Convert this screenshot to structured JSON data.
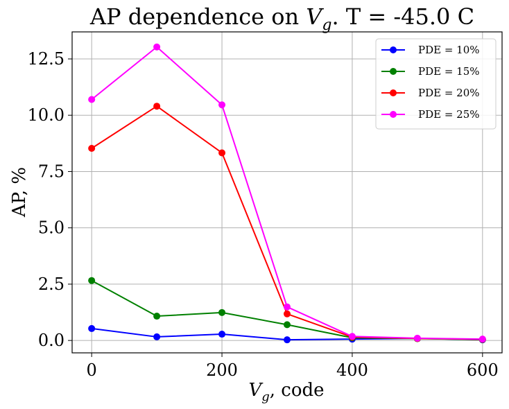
{
  "chart_data": {
    "type": "line",
    "title": "AP dependence on V_g. T = -45.0 C",
    "title_parts": {
      "prefix": "AP dependence on ",
      "var": "V",
      "sub": "g",
      "suffix": ". T = -45.0 C"
    },
    "xlabel": "V_g, code",
    "xlabel_parts": {
      "var": "V",
      "sub": "g",
      "suffix": ", code"
    },
    "ylabel": "AP, %",
    "x": [
      0,
      100,
      200,
      300,
      400,
      500,
      600
    ],
    "xlim": [
      -30,
      630
    ],
    "ylim": [
      -0.55,
      13.7
    ],
    "xticks": [
      0,
      200,
      400,
      600
    ],
    "xtick_labels": [
      "0",
      "200",
      "400",
      "600"
    ],
    "yticks": [
      0.0,
      2.5,
      5.0,
      7.5,
      10.0,
      12.5
    ],
    "ytick_labels": [
      "0.0",
      "2.5",
      "5.0",
      "7.5",
      "10.0",
      "12.5"
    ],
    "grid": true,
    "legend_position": "top-right",
    "series": [
      {
        "name": "PDE = 10%",
        "color": "#0000ff",
        "values": [
          0.53,
          0.16,
          0.28,
          0.03,
          0.06,
          0.09,
          0.03
        ]
      },
      {
        "name": "PDE = 15%",
        "color": "#008000",
        "values": [
          2.66,
          1.08,
          1.24,
          0.7,
          0.12,
          0.08,
          0.04
        ]
      },
      {
        "name": "PDE = 20%",
        "color": "#ff0000",
        "values": [
          8.53,
          10.4,
          8.33,
          1.18,
          0.15,
          0.09,
          0.05
        ]
      },
      {
        "name": "PDE = 25%",
        "color": "#ff00ff",
        "values": [
          10.7,
          13.03,
          10.46,
          1.49,
          0.18,
          0.1,
          0.06
        ]
      }
    ]
  }
}
